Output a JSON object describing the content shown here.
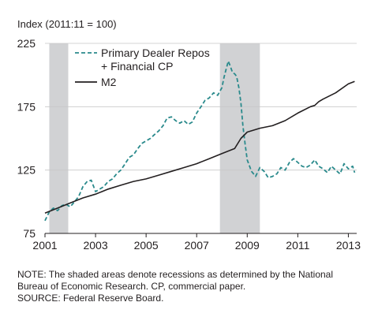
{
  "chart_data": {
    "type": "line",
    "title": "",
    "ylabel": "Index (2011:11 = 100)",
    "xlabel": "",
    "xlim": [
      2001,
      2013.33
    ],
    "ylim": [
      75,
      225
    ],
    "x_ticks": [
      2001,
      2003,
      2005,
      2007,
      2009,
      2011,
      2013
    ],
    "x_tick_labels": [
      "2001",
      "2003",
      "2005",
      "2007",
      "2009",
      "2011",
      "2013"
    ],
    "y_ticks": [
      75,
      125,
      175,
      225
    ],
    "y_tick_labels": [
      "75",
      "125",
      "175",
      "225"
    ],
    "grid": "horizontal",
    "legend_position": "top-left",
    "recessions": [
      [
        2001.17,
        2001.92
      ],
      [
        2007.92,
        2009.5
      ]
    ],
    "recession_color": "#d1d2d4",
    "series": [
      {
        "name": "Primary Dealer Repos + Financial CP",
        "legend_lines": [
          "Primary Dealer Repos",
          "+ Financial CP"
        ],
        "style": "dashed",
        "color": "#2a8a8c",
        "x": [
          2001.0,
          2001.17,
          2001.33,
          2001.5,
          2001.67,
          2001.83,
          2002.0,
          2002.17,
          2002.33,
          2002.5,
          2002.67,
          2002.83,
          2003.0,
          2003.17,
          2003.33,
          2003.5,
          2003.67,
          2003.83,
          2004.0,
          2004.17,
          2004.33,
          2004.5,
          2004.67,
          2004.83,
          2005.0,
          2005.17,
          2005.33,
          2005.5,
          2005.67,
          2005.83,
          2006.0,
          2006.17,
          2006.33,
          2006.5,
          2006.67,
          2006.83,
          2007.0,
          2007.17,
          2007.33,
          2007.5,
          2007.67,
          2007.83,
          2008.0,
          2008.08,
          2008.17,
          2008.25,
          2008.33,
          2008.42,
          2008.5,
          2008.58,
          2008.67,
          2008.75,
          2008.83,
          2008.92,
          2009.0,
          2009.17,
          2009.33,
          2009.5,
          2009.67,
          2009.83,
          2010.0,
          2010.17,
          2010.33,
          2010.5,
          2010.67,
          2010.83,
          2011.0,
          2011.17,
          2011.33,
          2011.5,
          2011.67,
          2011.83,
          2012.0,
          2012.17,
          2012.33,
          2012.5,
          2012.67,
          2012.83,
          2013.0,
          2013.17,
          2013.25
        ],
        "values": [
          85,
          92,
          95,
          93,
          97,
          98,
          96,
          100,
          104,
          112,
          116,
          117,
          108,
          110,
          112,
          116,
          118,
          122,
          125,
          130,
          135,
          137,
          142,
          146,
          148,
          150,
          153,
          156,
          160,
          166,
          167,
          164,
          162,
          164,
          161,
          163,
          170,
          175,
          180,
          182,
          186,
          184,
          190,
          198,
          205,
          211,
          207,
          202,
          201,
          199,
          190,
          178,
          160,
          145,
          133,
          124,
          120,
          127,
          124,
          119,
          120,
          122,
          127,
          125,
          131,
          134,
          131,
          128,
          127,
          129,
          133,
          128,
          126,
          123,
          128,
          125,
          122,
          130,
          126,
          128,
          123
        ]
      },
      {
        "name": "M2",
        "legend_lines": [
          "M2"
        ],
        "style": "solid",
        "color": "#231f20",
        "x": [
          2001.0,
          2001.5,
          2002.0,
          2002.5,
          2003.0,
          2003.5,
          2004.0,
          2004.5,
          2005.0,
          2005.5,
          2006.0,
          2006.5,
          2007.0,
          2007.5,
          2008.0,
          2008.5,
          2008.75,
          2009.0,
          2009.5,
          2010.0,
          2010.5,
          2011.0,
          2011.5,
          2011.67,
          2011.83,
          2012.0,
          2012.5,
          2013.0,
          2013.25
        ],
        "values": [
          91,
          95,
          99,
          103,
          106,
          110,
          113,
          116,
          118,
          121,
          124,
          127,
          130,
          134,
          138,
          142,
          150,
          155,
          158,
          160,
          164,
          170,
          175,
          176,
          179,
          181,
          186,
          193,
          195
        ]
      }
    ]
  },
  "footnotes": {
    "note_1": "NOTE: The shaded areas denote recessions as determined by the National",
    "note_2": "Bureau of Economic Research. CP, commercial paper.",
    "source": "SOURCE: Federal Reserve Board."
  }
}
